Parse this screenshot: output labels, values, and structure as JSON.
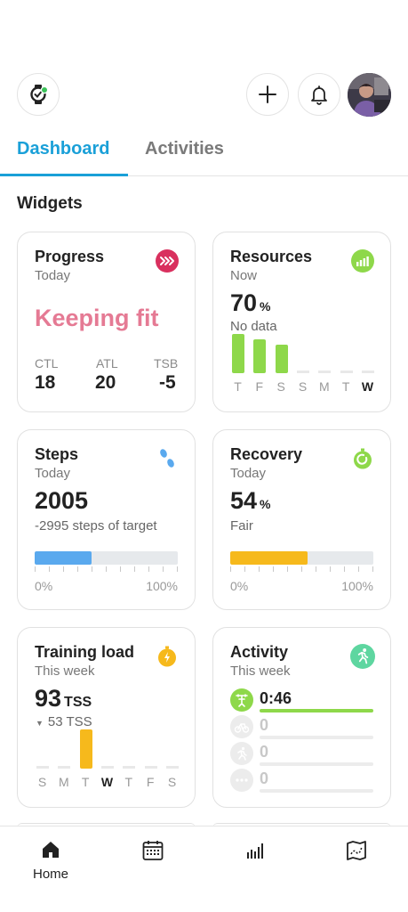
{
  "header": {
    "watch_icon": "watch-icon",
    "add_icon": "plus-icon",
    "bell_icon": "bell-icon"
  },
  "tabs": [
    {
      "label": "Dashboard",
      "active": true
    },
    {
      "label": "Activities",
      "active": false
    }
  ],
  "section_title": "Widgets",
  "progress": {
    "title": "Progress",
    "subtitle": "Today",
    "status": "Keeping fit",
    "metrics": [
      {
        "label": "CTL",
        "value": "18"
      },
      {
        "label": "ATL",
        "value": "20"
      },
      {
        "label": "TSB",
        "value": "-5"
      }
    ],
    "accent": "#d9305e"
  },
  "resources": {
    "title": "Resources",
    "subtitle": "Now",
    "value": "70",
    "unit": "%",
    "note": "No data",
    "days": [
      "T",
      "F",
      "S",
      "S",
      "M",
      "T",
      "W"
    ],
    "active_day": 6,
    "levels": [
      0.85,
      0.73,
      0.62,
      0,
      0,
      0,
      0
    ],
    "accent": "#8ed84a"
  },
  "steps": {
    "title": "Steps",
    "subtitle": "Today",
    "value": "2005",
    "note": "-2995 steps of target",
    "progress": 0.4,
    "min_label": "0%",
    "max_label": "100%",
    "accent": "#5aa9ee"
  },
  "recovery": {
    "title": "Recovery",
    "subtitle": "Today",
    "value": "54",
    "unit": "%",
    "note": "Fair",
    "progress": 0.54,
    "min_label": "0%",
    "max_label": "100%",
    "accent": "#f6b91c"
  },
  "training": {
    "title": "Training load",
    "subtitle": "This week",
    "value": "93",
    "unit": "TSS",
    "note": "53 TSS",
    "days": [
      "S",
      "M",
      "T",
      "W",
      "T",
      "F",
      "S"
    ],
    "active_day": 3,
    "levels": [
      0,
      0,
      0.85,
      0,
      0,
      0,
      0
    ],
    "accent": "#f6b91c"
  },
  "activity": {
    "title": "Activity",
    "subtitle": "This week",
    "rows": [
      {
        "value": "0:46",
        "icon": "strength-icon",
        "active": true
      },
      {
        "value": "0",
        "icon": "cycling-icon",
        "active": false
      },
      {
        "value": "0",
        "icon": "running-icon",
        "active": false
      },
      {
        "value": "0",
        "icon": "more-icon",
        "active": false
      }
    ],
    "accent": "#8ed84a",
    "badge_color": "#5ed6a0"
  },
  "nav": [
    {
      "label": "Home",
      "icon": "home-icon",
      "active": true
    },
    {
      "label": "",
      "icon": "calendar-icon",
      "active": false
    },
    {
      "label": "",
      "icon": "bar-chart-icon",
      "active": false
    },
    {
      "label": "",
      "icon": "map-icon",
      "active": false
    }
  ]
}
